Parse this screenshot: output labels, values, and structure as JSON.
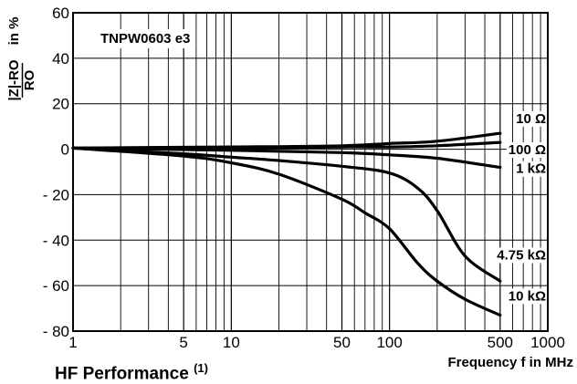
{
  "caption": {
    "text": "HF Performance",
    "note": "(1)"
  },
  "chart_data": {
    "type": "line",
    "title": "TNPW0603 e3",
    "xlabel": "Frequency f in MHz",
    "ylabel_numerator": "|Z|-RO",
    "ylabel_denominator": "RO",
    "ylabel_unit": "in %",
    "x_scale": "log",
    "xlim": [
      1,
      1000
    ],
    "ylim": [
      -80,
      60
    ],
    "grid": true,
    "x_ticks": [
      {
        "value": 1,
        "label": "1"
      },
      {
        "value": 5,
        "label": "5"
      },
      {
        "value": 10,
        "label": "10"
      },
      {
        "value": 50,
        "label": "50"
      },
      {
        "value": 100,
        "label": "100"
      },
      {
        "value": 500,
        "label": "500"
      },
      {
        "value": 1000,
        "label": "1000"
      }
    ],
    "y_ticks": [
      {
        "value": 60,
        "label": "60"
      },
      {
        "value": 40,
        "label": "40"
      },
      {
        "value": 20,
        "label": "20"
      },
      {
        "value": 0,
        "label": "0"
      },
      {
        "value": -20,
        "label": "- 20"
      },
      {
        "value": -40,
        "label": "- 40"
      },
      {
        "value": -60,
        "label": "- 60"
      },
      {
        "value": -80,
        "label": "- 80"
      }
    ],
    "series": [
      {
        "name": "10 Ω",
        "x": [
          1,
          10,
          50,
          100,
          200,
          500
        ],
        "values": [
          0.5,
          1,
          1.5,
          2.5,
          3.5,
          7
        ]
      },
      {
        "name": "100 Ω",
        "x": [
          1,
          10,
          50,
          100,
          200,
          500
        ],
        "values": [
          0.5,
          0.5,
          1,
          1,
          1.5,
          3
        ]
      },
      {
        "name": "1 kΩ",
        "x": [
          1,
          10,
          50,
          100,
          200,
          500
        ],
        "values": [
          0.5,
          -0.5,
          -1.5,
          -2.5,
          -4,
          -8
        ]
      },
      {
        "name": "4.75 kΩ",
        "x": [
          1,
          5,
          10,
          20,
          50,
          100,
          150,
          200,
          300,
          500
        ],
        "values": [
          0.5,
          -2,
          -3.5,
          -5,
          -7.5,
          -10.5,
          -17,
          -27,
          -47,
          -58
        ]
      },
      {
        "name": "10 kΩ",
        "x": [
          1,
          5,
          10,
          20,
          50,
          70,
          100,
          150,
          200,
          300,
          500
        ],
        "values": [
          0.5,
          -3,
          -6,
          -11,
          -22,
          -28,
          -35,
          -50,
          -58,
          -66,
          -73
        ]
      }
    ]
  }
}
